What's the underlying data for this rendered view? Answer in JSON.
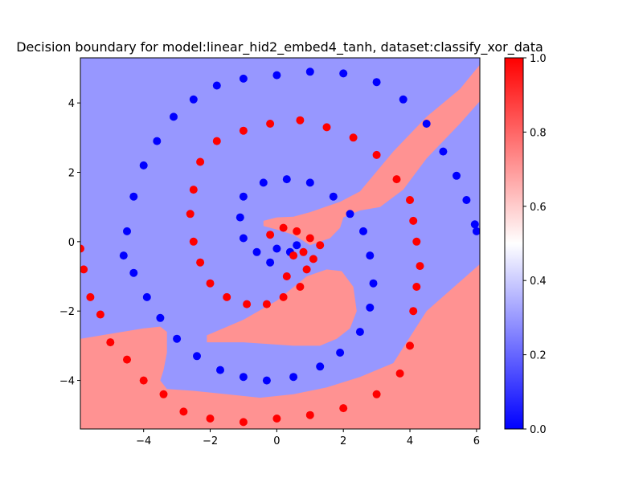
{
  "chart_data": {
    "type": "scatter",
    "title": "Decision boundary for model:linear_hid2_embed4_tanh, dataset:classify_xor_data",
    "xlabel": "",
    "ylabel": "",
    "xlim": [
      -5.9,
      6.1
    ],
    "ylim": [
      -5.4,
      5.3
    ],
    "xticks": [
      -4,
      -2,
      0,
      2,
      4,
      6
    ],
    "yticks": [
      -4,
      -2,
      0,
      2,
      4
    ],
    "grid": false,
    "background_colormap": "bwr",
    "colorbar": {
      "range": [
        0.0,
        1.0
      ],
      "ticks": [
        0.0,
        0.2,
        0.4,
        0.6,
        0.8,
        1.0
      ],
      "tick_labels": [
        "0.0",
        "0.2",
        "0.4",
        "0.6",
        "0.8",
        "1.0"
      ]
    },
    "region_colors": {
      "class_0": "#9797ff",
      "class_1": "#ff9292"
    },
    "point_colors": {
      "class_0": "#0000ff",
      "class_1": "#ff0000"
    },
    "regions_class_1": [
      [
        [
          -5.9,
          -2.8
        ],
        [
          -4.0,
          -2.5
        ],
        [
          -3.5,
          -2.45
        ],
        [
          -3.3,
          -2.6
        ],
        [
          -3.3,
          -3.2
        ],
        [
          -3.4,
          -3.7
        ],
        [
          -3.5,
          -4.0
        ],
        [
          -3.3,
          -4.25
        ],
        [
          -2.5,
          -4.3
        ],
        [
          -1.5,
          -4.4
        ],
        [
          -0.5,
          -4.5
        ],
        [
          0.5,
          -4.4
        ],
        [
          1.5,
          -4.2
        ],
        [
          2.5,
          -3.9
        ],
        [
          3.5,
          -3.5
        ],
        [
          4.5,
          -2.0
        ],
        [
          6.1,
          -0.65
        ],
        [
          6.1,
          -5.4
        ],
        [
          -5.9,
          -5.4
        ]
      ],
      [
        [
          -2.1,
          -2.7
        ],
        [
          -1.0,
          -2.25
        ],
        [
          0.0,
          -1.7
        ],
        [
          0.9,
          -1.0
        ],
        [
          1.5,
          -0.8
        ],
        [
          1.95,
          -0.85
        ],
        [
          2.3,
          -1.3
        ],
        [
          2.4,
          -2.0
        ],
        [
          2.2,
          -2.5
        ],
        [
          1.8,
          -2.8
        ],
        [
          1.3,
          -3.0
        ],
        [
          0.5,
          -3.0
        ],
        [
          -1.0,
          -2.9
        ],
        [
          -2.1,
          -2.9
        ]
      ],
      [
        [
          -0.4,
          0.6
        ],
        [
          0.0,
          0.7
        ],
        [
          0.5,
          0.72
        ],
        [
          1.0,
          0.85
        ],
        [
          1.6,
          1.05
        ],
        [
          1.9,
          1.15
        ],
        [
          2.5,
          1.45
        ],
        [
          3.5,
          2.6
        ],
        [
          4.5,
          3.6
        ],
        [
          5.5,
          4.4
        ],
        [
          6.1,
          5.1
        ],
        [
          6.1,
          4.05
        ],
        [
          5.5,
          3.4
        ],
        [
          4.5,
          2.4
        ],
        [
          3.8,
          1.5
        ],
        [
          3.1,
          1.0
        ],
        [
          2.5,
          0.9
        ],
        [
          2.0,
          0.7
        ],
        [
          1.9,
          0.4
        ],
        [
          1.6,
          0.1
        ],
        [
          1.0,
          -0.1
        ],
        [
          0.5,
          0.2
        ],
        [
          0.0,
          0.35
        ],
        [
          -0.4,
          0.45
        ]
      ]
    ],
    "series": [
      {
        "label": "0",
        "points": [
          [
            -4.6,
            -0.4
          ],
          [
            -4.5,
            0.3
          ],
          [
            -4.3,
            1.3
          ],
          [
            -4.0,
            2.2
          ],
          [
            -3.6,
            2.9
          ],
          [
            -3.1,
            3.6
          ],
          [
            -2.5,
            4.1
          ],
          [
            -1.8,
            4.5
          ],
          [
            -1.0,
            4.7
          ],
          [
            0.0,
            4.8
          ],
          [
            1.0,
            4.9
          ],
          [
            2.0,
            4.85
          ],
          [
            3.0,
            4.6
          ],
          [
            3.8,
            4.1
          ],
          [
            4.5,
            3.4
          ],
          [
            5.0,
            2.6
          ],
          [
            5.4,
            1.9
          ],
          [
            5.7,
            1.2
          ],
          [
            5.95,
            0.5
          ],
          [
            6.0,
            0.3
          ],
          [
            -4.3,
            -0.9
          ],
          [
            -3.9,
            -1.6
          ],
          [
            -3.5,
            -2.2
          ],
          [
            -3.0,
            -2.8
          ],
          [
            -2.4,
            -3.3
          ],
          [
            -1.7,
            -3.7
          ],
          [
            -1.0,
            -3.9
          ],
          [
            -0.3,
            -4.0
          ],
          [
            0.5,
            -3.9
          ],
          [
            1.3,
            -3.6
          ],
          [
            1.9,
            -3.2
          ],
          [
            2.5,
            -2.6
          ],
          [
            2.8,
            -1.9
          ],
          [
            2.9,
            -1.2
          ],
          [
            2.8,
            -0.4
          ],
          [
            2.6,
            0.3
          ],
          [
            2.2,
            0.8
          ],
          [
            1.7,
            1.3
          ],
          [
            1.0,
            1.7
          ],
          [
            0.3,
            1.8
          ],
          [
            -0.4,
            1.7
          ],
          [
            -1.0,
            1.3
          ],
          [
            -1.1,
            0.7
          ],
          [
            -1.0,
            0.1
          ],
          [
            -0.6,
            -0.3
          ],
          [
            0.0,
            -0.2
          ],
          [
            0.4,
            -0.3
          ],
          [
            -0.2,
            -0.6
          ],
          [
            0.6,
            -0.1
          ]
        ]
      },
      {
        "label": "1",
        "points": [
          [
            -5.9,
            -0.2
          ],
          [
            -5.8,
            -0.8
          ],
          [
            -5.6,
            -1.6
          ],
          [
            -5.3,
            -2.1
          ],
          [
            -5.0,
            -2.9
          ],
          [
            -4.5,
            -3.4
          ],
          [
            -4.0,
            -4.0
          ],
          [
            -3.4,
            -4.4
          ],
          [
            -2.8,
            -4.9
          ],
          [
            -2.0,
            -5.1
          ],
          [
            -1.0,
            -5.2
          ],
          [
            0.0,
            -5.1
          ],
          [
            1.0,
            -5.0
          ],
          [
            2.0,
            -4.8
          ],
          [
            3.0,
            -4.4
          ],
          [
            3.7,
            -3.8
          ],
          [
            4.0,
            -3.0
          ],
          [
            4.1,
            -2.0
          ],
          [
            4.2,
            -1.3
          ],
          [
            4.3,
            -0.7
          ],
          [
            4.2,
            0.0
          ],
          [
            4.1,
            0.6
          ],
          [
            4.0,
            1.2
          ],
          [
            3.6,
            1.8
          ],
          [
            3.0,
            2.5
          ],
          [
            2.3,
            3.0
          ],
          [
            1.5,
            3.3
          ],
          [
            0.7,
            3.5
          ],
          [
            -0.2,
            3.4
          ],
          [
            -1.0,
            3.2
          ],
          [
            -1.8,
            2.9
          ],
          [
            -2.3,
            2.3
          ],
          [
            -2.5,
            1.5
          ],
          [
            -2.6,
            0.8
          ],
          [
            -2.5,
            0.0
          ],
          [
            -2.3,
            -0.6
          ],
          [
            -2.0,
            -1.2
          ],
          [
            -1.5,
            -1.6
          ],
          [
            -0.9,
            -1.8
          ],
          [
            -0.3,
            -1.8
          ],
          [
            0.2,
            -1.6
          ],
          [
            0.7,
            -1.3
          ],
          [
            0.9,
            -0.8
          ],
          [
            0.8,
            -0.3
          ],
          [
            0.6,
            0.3
          ],
          [
            0.2,
            0.4
          ],
          [
            1.0,
            0.1
          ],
          [
            1.3,
            -0.1
          ],
          [
            0.5,
            -0.4
          ],
          [
            -0.2,
            0.2
          ],
          [
            1.1,
            -0.5
          ],
          [
            0.3,
            -1.0
          ]
        ]
      }
    ]
  }
}
